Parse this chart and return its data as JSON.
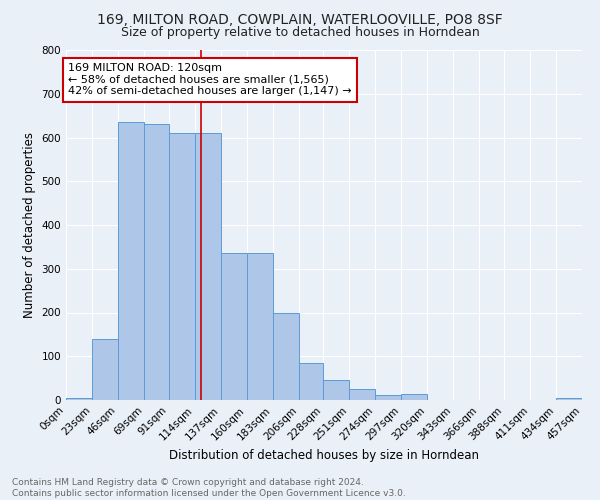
{
  "title1": "169, MILTON ROAD, COWPLAIN, WATERLOOVILLE, PO8 8SF",
  "title2": "Size of property relative to detached houses in Horndean",
  "xlabel": "Distribution of detached houses by size in Horndean",
  "ylabel": "Number of detached properties",
  "bar_values": [
    5,
    140,
    635,
    630,
    610,
    610,
    335,
    335,
    200,
    85,
    45,
    25,
    12,
    14,
    0,
    0,
    0,
    0,
    0,
    5
  ],
  "bin_edges": [
    0,
    23,
    46,
    69,
    91,
    114,
    137,
    160,
    183,
    206,
    228,
    251,
    274,
    297,
    320,
    343,
    366,
    388,
    411,
    434,
    457
  ],
  "tick_labels": [
    "0sqm",
    "23sqm",
    "46sqm",
    "69sqm",
    "91sqm",
    "114sqm",
    "137sqm",
    "160sqm",
    "183sqm",
    "206sqm",
    "228sqm",
    "251sqm",
    "274sqm",
    "297sqm",
    "320sqm",
    "343sqm",
    "366sqm",
    "388sqm",
    "411sqm",
    "434sqm",
    "457sqm"
  ],
  "bar_color": "#aec6e8",
  "bar_edge_color": "#5b9bd5",
  "vline_x": 120,
  "vline_color": "#cc0000",
  "annotation_line1": "169 MILTON ROAD: 120sqm",
  "annotation_line2": "← 58% of detached houses are smaller (1,565)",
  "annotation_line3": "42% of semi-detached houses are larger (1,147) →",
  "annotation_box_color": "#ffffff",
  "annotation_box_edge_color": "#cc0000",
  "ylim": [
    0,
    800
  ],
  "yticks": [
    0,
    100,
    200,
    300,
    400,
    500,
    600,
    700,
    800
  ],
  "background_color": "#eaf0f8",
  "grid_color": "#ffffff",
  "footer_text": "Contains HM Land Registry data © Crown copyright and database right 2024.\nContains public sector information licensed under the Open Government Licence v3.0.",
  "title_fontsize": 10,
  "subtitle_fontsize": 9,
  "axis_label_fontsize": 8.5,
  "tick_fontsize": 7.5,
  "annotation_fontsize": 8,
  "footer_fontsize": 6.5
}
